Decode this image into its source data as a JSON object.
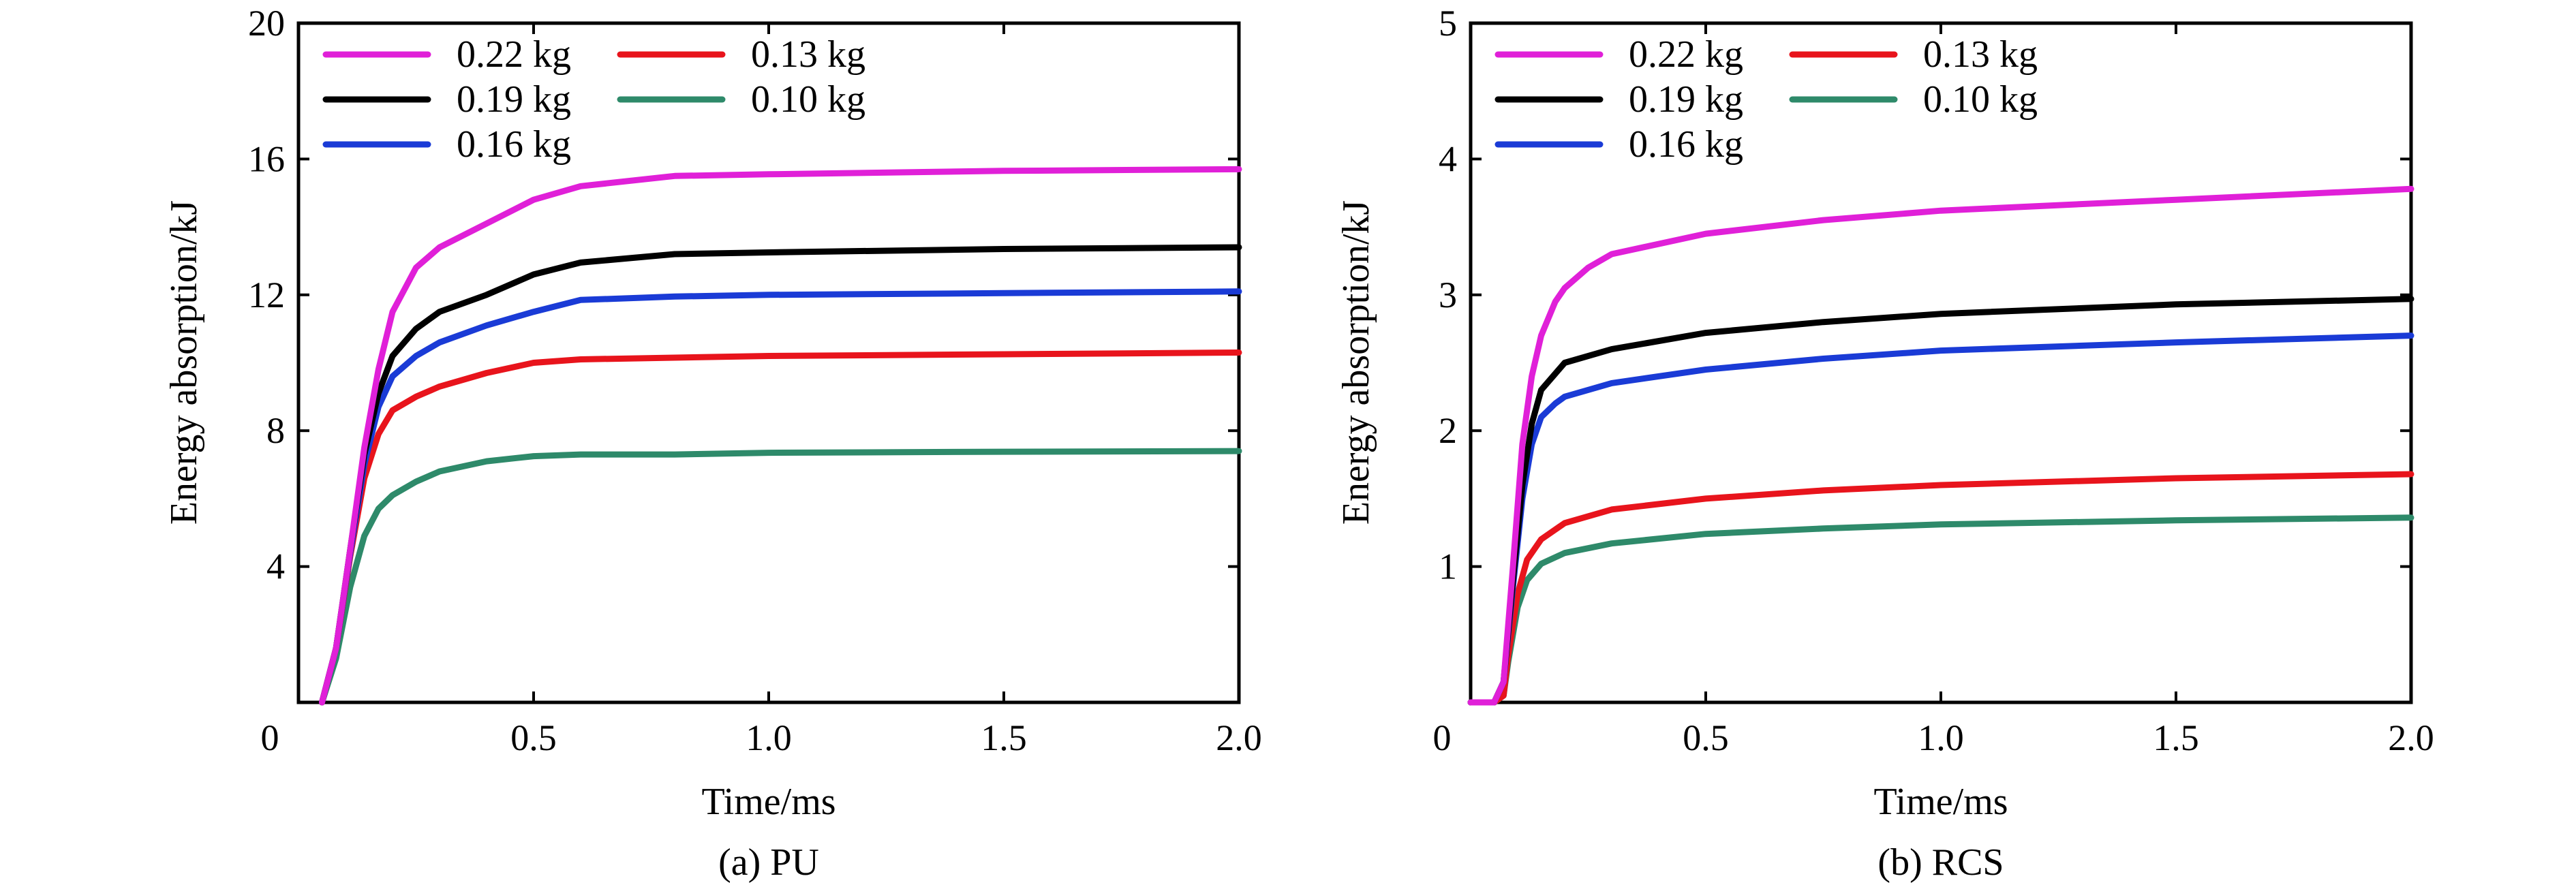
{
  "chart_data": [
    {
      "type": "line",
      "caption": "(a) PU",
      "xlabel": "Time/ms",
      "ylabel": "Energy absorption/kJ",
      "xlim": [
        0,
        2.0
      ],
      "ylim": [
        0,
        20
      ],
      "x_tick_labels": [
        "0",
        "0.5",
        "1.0",
        "1.5",
        "2.0"
      ],
      "x_tick_values": [
        0,
        0.5,
        1.0,
        1.5,
        2.0
      ],
      "y_tick_labels": [
        "4",
        "8",
        "12",
        "16",
        "20"
      ],
      "y_tick_values": [
        4,
        8,
        12,
        16,
        20
      ],
      "grid": false,
      "legend_position": "top-left",
      "series": [
        {
          "name": "0.22 kg",
          "color": "#e020d8",
          "points": [
            [
              0.05,
              0
            ],
            [
              0.08,
              1.6
            ],
            [
              0.11,
              4.5
            ],
            [
              0.14,
              7.5
            ],
            [
              0.17,
              9.8
            ],
            [
              0.2,
              11.5
            ],
            [
              0.25,
              12.8
            ],
            [
              0.3,
              13.4
            ],
            [
              0.4,
              14.1
            ],
            [
              0.5,
              14.8
            ],
            [
              0.6,
              15.2
            ],
            [
              0.8,
              15.5
            ],
            [
              1.0,
              15.55
            ],
            [
              1.5,
              15.65
            ],
            [
              2.0,
              15.7
            ]
          ]
        },
        {
          "name": "0.13 kg",
          "color": "#e8141c",
          "points": [
            [
              0.05,
              0
            ],
            [
              0.08,
              1.6
            ],
            [
              0.11,
              4.3
            ],
            [
              0.14,
              6.6
            ],
            [
              0.17,
              7.9
            ],
            [
              0.2,
              8.6
            ],
            [
              0.25,
              9.0
            ],
            [
              0.3,
              9.3
            ],
            [
              0.4,
              9.7
            ],
            [
              0.5,
              10.0
            ],
            [
              0.6,
              10.1
            ],
            [
              0.8,
              10.15
            ],
            [
              1.0,
              10.2
            ],
            [
              1.5,
              10.25
            ],
            [
              2.0,
              10.3
            ]
          ]
        },
        {
          "name": "0.19 kg",
          "color": "#000000",
          "points": [
            [
              0.05,
              0
            ],
            [
              0.08,
              1.6
            ],
            [
              0.11,
              4.5
            ],
            [
              0.14,
              7.3
            ],
            [
              0.17,
              9.1
            ],
            [
              0.2,
              10.2
            ],
            [
              0.25,
              11.0
            ],
            [
              0.3,
              11.5
            ],
            [
              0.4,
              12.0
            ],
            [
              0.5,
              12.6
            ],
            [
              0.6,
              12.95
            ],
            [
              0.8,
              13.2
            ],
            [
              1.0,
              13.25
            ],
            [
              1.5,
              13.35
            ],
            [
              2.0,
              13.4
            ]
          ]
        },
        {
          "name": "0.10 kg",
          "color": "#2e8a6a",
          "points": [
            [
              0.05,
              0
            ],
            [
              0.08,
              1.3
            ],
            [
              0.11,
              3.4
            ],
            [
              0.14,
              4.9
            ],
            [
              0.17,
              5.7
            ],
            [
              0.2,
              6.1
            ],
            [
              0.25,
              6.5
            ],
            [
              0.3,
              6.8
            ],
            [
              0.4,
              7.1
            ],
            [
              0.5,
              7.25
            ],
            [
              0.6,
              7.3
            ],
            [
              0.8,
              7.3
            ],
            [
              1.0,
              7.35
            ],
            [
              1.5,
              7.38
            ],
            [
              2.0,
              7.4
            ]
          ]
        },
        {
          "name": "0.16 kg",
          "color": "#1a3bd6",
          "points": [
            [
              0.05,
              0
            ],
            [
              0.08,
              1.6
            ],
            [
              0.11,
              4.4
            ],
            [
              0.14,
              7.0
            ],
            [
              0.17,
              8.7
            ],
            [
              0.2,
              9.6
            ],
            [
              0.25,
              10.2
            ],
            [
              0.3,
              10.6
            ],
            [
              0.4,
              11.1
            ],
            [
              0.5,
              11.5
            ],
            [
              0.6,
              11.85
            ],
            [
              0.8,
              11.95
            ],
            [
              1.0,
              12.0
            ],
            [
              1.5,
              12.05
            ],
            [
              2.0,
              12.1
            ]
          ]
        }
      ]
    },
    {
      "type": "line",
      "caption": "(b) RCS",
      "xlabel": "Time/ms",
      "ylabel": "Energy absorption/kJ",
      "xlim": [
        0,
        2.0
      ],
      "ylim": [
        0,
        5
      ],
      "x_tick_labels": [
        "0",
        "0.5",
        "1.0",
        "1.5",
        "2.0"
      ],
      "x_tick_values": [
        0,
        0.5,
        1.0,
        1.5,
        2.0
      ],
      "y_tick_labels": [
        "1",
        "2",
        "3",
        "4",
        "5"
      ],
      "y_tick_values": [
        1,
        2,
        3,
        4,
        5
      ],
      "grid": false,
      "legend_position": "top-left",
      "series": [
        {
          "name": "0.22 kg",
          "color": "#e020d8",
          "points": [
            [
              0.0,
              0
            ],
            [
              0.05,
              0
            ],
            [
              0.07,
              0.15
            ],
            [
              0.09,
              1.0
            ],
            [
              0.11,
              1.9
            ],
            [
              0.13,
              2.4
            ],
            [
              0.15,
              2.7
            ],
            [
              0.18,
              2.95
            ],
            [
              0.2,
              3.05
            ],
            [
              0.25,
              3.2
            ],
            [
              0.3,
              3.3
            ],
            [
              0.5,
              3.45
            ],
            [
              0.75,
              3.55
            ],
            [
              1.0,
              3.62
            ],
            [
              1.5,
              3.7
            ],
            [
              2.0,
              3.78
            ]
          ]
        },
        {
          "name": "0.13 kg",
          "color": "#e8141c",
          "points": [
            [
              0.0,
              0
            ],
            [
              0.05,
              0
            ],
            [
              0.07,
              0.05
            ],
            [
              0.08,
              0.35
            ],
            [
              0.1,
              0.8
            ],
            [
              0.12,
              1.05
            ],
            [
              0.15,
              1.2
            ],
            [
              0.2,
              1.32
            ],
            [
              0.3,
              1.42
            ],
            [
              0.5,
              1.5
            ],
            [
              0.75,
              1.56
            ],
            [
              1.0,
              1.6
            ],
            [
              1.5,
              1.65
            ],
            [
              2.0,
              1.68
            ]
          ]
        },
        {
          "name": "0.19 kg",
          "color": "#000000",
          "points": [
            [
              0.0,
              0
            ],
            [
              0.05,
              0
            ],
            [
              0.07,
              0.15
            ],
            [
              0.09,
              0.9
            ],
            [
              0.11,
              1.6
            ],
            [
              0.13,
              2.05
            ],
            [
              0.15,
              2.3
            ],
            [
              0.18,
              2.42
            ],
            [
              0.2,
              2.5
            ],
            [
              0.3,
              2.6
            ],
            [
              0.5,
              2.72
            ],
            [
              0.75,
              2.8
            ],
            [
              1.0,
              2.86
            ],
            [
              1.5,
              2.93
            ],
            [
              2.0,
              2.97
            ]
          ]
        },
        {
          "name": "0.10 kg",
          "color": "#2e8a6a",
          "points": [
            [
              0.0,
              0
            ],
            [
              0.05,
              0
            ],
            [
              0.07,
              0.05
            ],
            [
              0.08,
              0.3
            ],
            [
              0.1,
              0.7
            ],
            [
              0.12,
              0.9
            ],
            [
              0.15,
              1.02
            ],
            [
              0.2,
              1.1
            ],
            [
              0.3,
              1.17
            ],
            [
              0.5,
              1.24
            ],
            [
              0.75,
              1.28
            ],
            [
              1.0,
              1.31
            ],
            [
              1.5,
              1.34
            ],
            [
              2.0,
              1.36
            ]
          ]
        },
        {
          "name": "0.16 kg",
          "color": "#1a3bd6",
          "points": [
            [
              0.0,
              0
            ],
            [
              0.05,
              0
            ],
            [
              0.07,
              0.15
            ],
            [
              0.09,
              0.85
            ],
            [
              0.11,
              1.5
            ],
            [
              0.13,
              1.9
            ],
            [
              0.15,
              2.1
            ],
            [
              0.18,
              2.2
            ],
            [
              0.2,
              2.25
            ],
            [
              0.3,
              2.35
            ],
            [
              0.5,
              2.45
            ],
            [
              0.75,
              2.53
            ],
            [
              1.0,
              2.59
            ],
            [
              1.5,
              2.65
            ],
            [
              2.0,
              2.7
            ]
          ]
        }
      ]
    }
  ]
}
